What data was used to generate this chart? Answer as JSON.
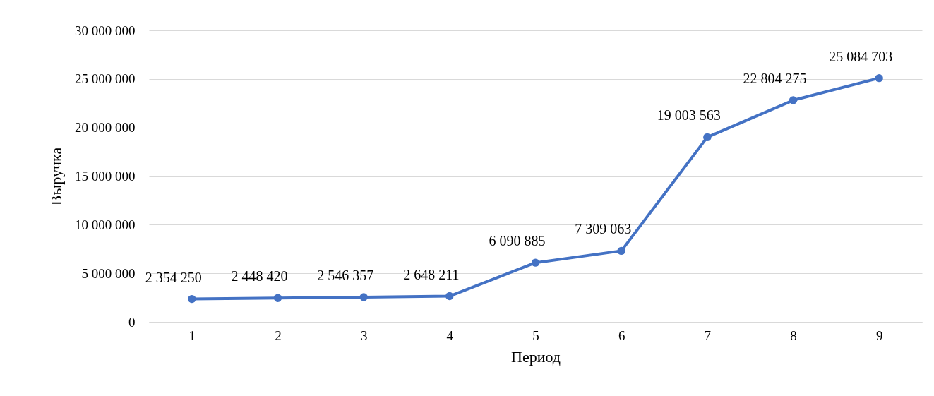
{
  "chart_data": {
    "type": "line",
    "xlabel": "Период",
    "ylabel": "Выручка",
    "categories": [
      "1",
      "2",
      "3",
      "4",
      "5",
      "6",
      "7",
      "8",
      "9"
    ],
    "series": [
      {
        "color": "#4472c4",
        "values": [
          2354250,
          2448420,
          2546357,
          2648211,
          6090885,
          7309063,
          19003563,
          22804275,
          25084703
        ],
        "value_labels": [
          "2 354 250",
          "2 448 420",
          "2 546 357",
          "2 648 211",
          "6 090 885",
          "7 309 063",
          "19 003 563",
          "22 804 275",
          "25 084 703"
        ]
      }
    ],
    "ylim": [
      0,
      30000000
    ],
    "yticks": [
      0,
      {
        "value": 5000000,
        "label": "5 000 000"
      },
      {
        "value": 10000000,
        "label": "10 000 000"
      },
      {
        "value": 15000000,
        "label": "15 000 000"
      },
      {
        "value": 20000000,
        "label": "20 000 000"
      },
      {
        "value": 25000000,
        "label": "25 000 000"
      },
      {
        "value": 30000000,
        "label": "30 000 000"
      }
    ],
    "grid": "y",
    "marker": "circle",
    "line_style": "solid",
    "legend": false
  }
}
